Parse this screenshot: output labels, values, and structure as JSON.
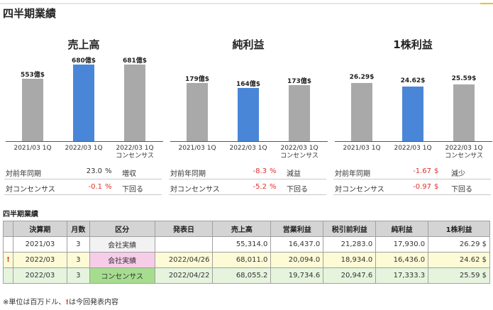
{
  "header": {
    "title": "四半期業績"
  },
  "panels": [
    {
      "title": "売上高",
      "bars": [
        {
          "label": "553億$",
          "value": 553,
          "color": "gray",
          "cat1": "2021/03 1Q",
          "cat2": ""
        },
        {
          "label": "680億$",
          "value": 680,
          "color": "blue",
          "cat1": "2022/03 1Q",
          "cat2": ""
        },
        {
          "label": "681億$",
          "value": 681,
          "color": "gray",
          "cat1": "2022/03 1Q",
          "cat2": "コンセンサス"
        }
      ],
      "stats": [
        {
          "label": "対前年同期",
          "value": "23.0",
          "neg": false,
          "unit": "%",
          "word": "増収"
        },
        {
          "label": "対コンセンサス",
          "value": "-0.1",
          "neg": true,
          "unit": "%",
          "word": "下回る"
        }
      ]
    },
    {
      "title": "純利益",
      "bars": [
        {
          "label": "179億$",
          "value": 179,
          "color": "gray",
          "cat1": "2021/03 1Q",
          "cat2": ""
        },
        {
          "label": "164億$",
          "value": 164,
          "color": "blue",
          "cat1": "2022/03 1Q",
          "cat2": ""
        },
        {
          "label": "173億$",
          "value": 173,
          "color": "gray",
          "cat1": "2022/03 1Q",
          "cat2": "コンセンサス"
        }
      ],
      "stats": [
        {
          "label": "対前年同期",
          "value": "-8.3",
          "neg": true,
          "unit": "%",
          "word": "減益"
        },
        {
          "label": "対コンセンサス",
          "value": "-5.2",
          "neg": true,
          "unit": "%",
          "word": "下回る"
        }
      ]
    },
    {
      "title": "1株利益",
      "bars": [
        {
          "label": "26.29$",
          "value": 26.29,
          "color": "gray",
          "cat1": "2021/03 1Q",
          "cat2": ""
        },
        {
          "label": "24.62$",
          "value": 24.62,
          "color": "blue",
          "cat1": "2022/03 1Q",
          "cat2": ""
        },
        {
          "label": "25.59$",
          "value": 25.59,
          "color": "gray",
          "cat1": "2022/03 1Q",
          "cat2": "コンセンサス"
        }
      ],
      "stats": [
        {
          "label": "対前年同期",
          "value": "-1.67",
          "neg": true,
          "unit": "$",
          "word": "減少"
        },
        {
          "label": "対コンセンサス",
          "value": "-0.97",
          "neg": true,
          "unit": "$",
          "word": "下回る"
        }
      ]
    }
  ],
  "table": {
    "title": "四半期業績",
    "headers": [
      "",
      "決算期",
      "月数",
      "区分",
      "発表日",
      "売上高",
      "営業利益",
      "税引前利益",
      "純利益",
      "1株利益"
    ],
    "rows": [
      {
        "mark": "",
        "period": "2021/03",
        "months": "3",
        "kbn": "会社実績",
        "date": "",
        "sales": "55,314.0",
        "op": "16,437.0",
        "pretax": "21,283.0",
        "net": "17,930.0",
        "eps": "26.29 $",
        "style": "a"
      },
      {
        "mark": "!",
        "period": "2022/03",
        "months": "3",
        "kbn": "会社実績",
        "date": "2022/04/26",
        "sales": "68,011.0",
        "op": "20,094.0",
        "pretax": "18,934.0",
        "net": "16,436.0",
        "eps": "24.62 $",
        "style": "b"
      },
      {
        "mark": "",
        "period": "2022/03",
        "months": "3",
        "kbn": "コンセンサス",
        "date": "2022/04/22",
        "sales": "68,055.2",
        "op": "19,734.6",
        "pretax": "20,947.6",
        "net": "17,333.3",
        "eps": "25.59 $",
        "style": "c"
      }
    ]
  },
  "footnote": {
    "pre": "※単位は百万ドル、",
    "mark": "!",
    "post": "は今回発表内容"
  },
  "chart_data": [
    {
      "type": "bar",
      "title": "売上高",
      "categories": [
        "2021/03 1Q",
        "2022/03 1Q",
        "2022/03 1Q コンセンサス"
      ],
      "values": [
        553,
        680,
        681
      ],
      "data_labels": [
        "553億$",
        "680億$",
        "681億$"
      ]
    },
    {
      "type": "bar",
      "title": "純利益",
      "categories": [
        "2021/03 1Q",
        "2022/03 1Q",
        "2022/03 1Q コンセンサス"
      ],
      "values": [
        179,
        164,
        173
      ],
      "data_labels": [
        "179億$",
        "164億$",
        "173億$"
      ]
    },
    {
      "type": "bar",
      "title": "1株利益",
      "categories": [
        "2021/03 1Q",
        "2022/03 1Q",
        "2022/03 1Q コンセンサス"
      ],
      "values": [
        26.29,
        24.62,
        25.59
      ],
      "data_labels": [
        "26.29$",
        "24.62$",
        "25.59$"
      ]
    }
  ]
}
